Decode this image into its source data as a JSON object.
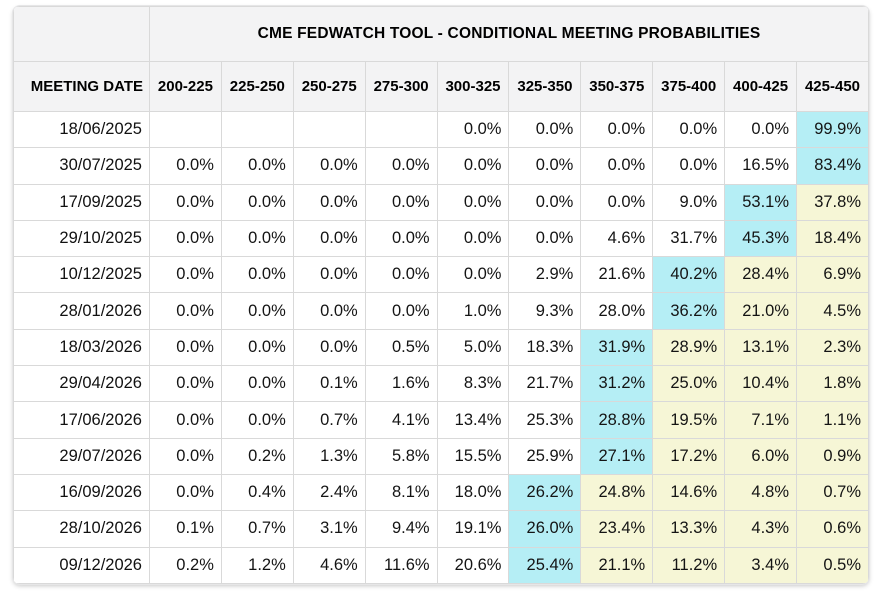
{
  "chart_data": {
    "type": "table",
    "title": "CME FEDWATCH TOOL - CONDITIONAL MEETING PROBABILITIES",
    "row_header": "MEETING DATE",
    "columns": [
      "200-225",
      "225-250",
      "250-275",
      "275-300",
      "300-325",
      "325-350",
      "350-375",
      "375-400",
      "400-425",
      "425-450"
    ],
    "units": "percent probability per target rate range (bps)",
    "rows": [
      {
        "date": "18/06/2025",
        "values": [
          "",
          "",
          "",
          "",
          "0.0%",
          "0.0%",
          "0.0%",
          "0.0%",
          "0.0%",
          "99.9%"
        ],
        "highlights": [
          "",
          "",
          "",
          "",
          "",
          "",
          "",
          "",
          "",
          "cyan"
        ]
      },
      {
        "date": "30/07/2025",
        "values": [
          "0.0%",
          "0.0%",
          "0.0%",
          "0.0%",
          "0.0%",
          "0.0%",
          "0.0%",
          "0.0%",
          "16.5%",
          "83.4%"
        ],
        "highlights": [
          "",
          "",
          "",
          "",
          "",
          "",
          "",
          "",
          "",
          "cyan"
        ]
      },
      {
        "date": "17/09/2025",
        "values": [
          "0.0%",
          "0.0%",
          "0.0%",
          "0.0%",
          "0.0%",
          "0.0%",
          "0.0%",
          "9.0%",
          "53.1%",
          "37.8%"
        ],
        "highlights": [
          "",
          "",
          "",
          "",
          "",
          "",
          "",
          "",
          "cyan",
          "yellow"
        ]
      },
      {
        "date": "29/10/2025",
        "values": [
          "0.0%",
          "0.0%",
          "0.0%",
          "0.0%",
          "0.0%",
          "0.0%",
          "4.6%",
          "31.7%",
          "45.3%",
          "18.4%"
        ],
        "highlights": [
          "",
          "",
          "",
          "",
          "",
          "",
          "",
          "",
          "cyan",
          "yellow"
        ]
      },
      {
        "date": "10/12/2025",
        "values": [
          "0.0%",
          "0.0%",
          "0.0%",
          "0.0%",
          "0.0%",
          "2.9%",
          "21.6%",
          "40.2%",
          "28.4%",
          "6.9%"
        ],
        "highlights": [
          "",
          "",
          "",
          "",
          "",
          "",
          "",
          "cyan",
          "yellow",
          "yellow"
        ]
      },
      {
        "date": "28/01/2026",
        "values": [
          "0.0%",
          "0.0%",
          "0.0%",
          "0.0%",
          "1.0%",
          "9.3%",
          "28.0%",
          "36.2%",
          "21.0%",
          "4.5%"
        ],
        "highlights": [
          "",
          "",
          "",
          "",
          "",
          "",
          "",
          "cyan",
          "yellow",
          "yellow"
        ]
      },
      {
        "date": "18/03/2026",
        "values": [
          "0.0%",
          "0.0%",
          "0.0%",
          "0.5%",
          "5.0%",
          "18.3%",
          "31.9%",
          "28.9%",
          "13.1%",
          "2.3%"
        ],
        "highlights": [
          "",
          "",
          "",
          "",
          "",
          "",
          "cyan",
          "yellow",
          "yellow",
          "yellow"
        ]
      },
      {
        "date": "29/04/2026",
        "values": [
          "0.0%",
          "0.0%",
          "0.1%",
          "1.6%",
          "8.3%",
          "21.7%",
          "31.2%",
          "25.0%",
          "10.4%",
          "1.8%"
        ],
        "highlights": [
          "",
          "",
          "",
          "",
          "",
          "",
          "cyan",
          "yellow",
          "yellow",
          "yellow"
        ]
      },
      {
        "date": "17/06/2026",
        "values": [
          "0.0%",
          "0.0%",
          "0.7%",
          "4.1%",
          "13.4%",
          "25.3%",
          "28.8%",
          "19.5%",
          "7.1%",
          "1.1%"
        ],
        "highlights": [
          "",
          "",
          "",
          "",
          "",
          "",
          "cyan",
          "yellow",
          "yellow",
          "yellow"
        ]
      },
      {
        "date": "29/07/2026",
        "values": [
          "0.0%",
          "0.2%",
          "1.3%",
          "5.8%",
          "15.5%",
          "25.9%",
          "27.1%",
          "17.2%",
          "6.0%",
          "0.9%"
        ],
        "highlights": [
          "",
          "",
          "",
          "",
          "",
          "",
          "cyan",
          "yellow",
          "yellow",
          "yellow"
        ]
      },
      {
        "date": "16/09/2026",
        "values": [
          "0.0%",
          "0.4%",
          "2.4%",
          "8.1%",
          "18.0%",
          "26.2%",
          "24.8%",
          "14.6%",
          "4.8%",
          "0.7%"
        ],
        "highlights": [
          "",
          "",
          "",
          "",
          "",
          "cyan",
          "yellow",
          "yellow",
          "yellow",
          "yellow"
        ]
      },
      {
        "date": "28/10/2026",
        "values": [
          "0.1%",
          "0.7%",
          "3.1%",
          "9.4%",
          "19.1%",
          "26.0%",
          "23.4%",
          "13.3%",
          "4.3%",
          "0.6%"
        ],
        "highlights": [
          "",
          "",
          "",
          "",
          "",
          "cyan",
          "yellow",
          "yellow",
          "yellow",
          "yellow"
        ]
      },
      {
        "date": "09/12/2026",
        "values": [
          "0.2%",
          "1.2%",
          "4.6%",
          "11.6%",
          "20.6%",
          "25.4%",
          "21.1%",
          "11.2%",
          "3.4%",
          "0.5%"
        ],
        "highlights": [
          "",
          "",
          "",
          "",
          "",
          "cyan",
          "yellow",
          "yellow",
          "yellow",
          "yellow"
        ]
      }
    ]
  },
  "colors": {
    "highlight_cyan": "#b5eef5",
    "highlight_yellow": "#f6f6d6",
    "header_bg": "#f3f3f4",
    "grid_line": "#d9d9d9"
  }
}
